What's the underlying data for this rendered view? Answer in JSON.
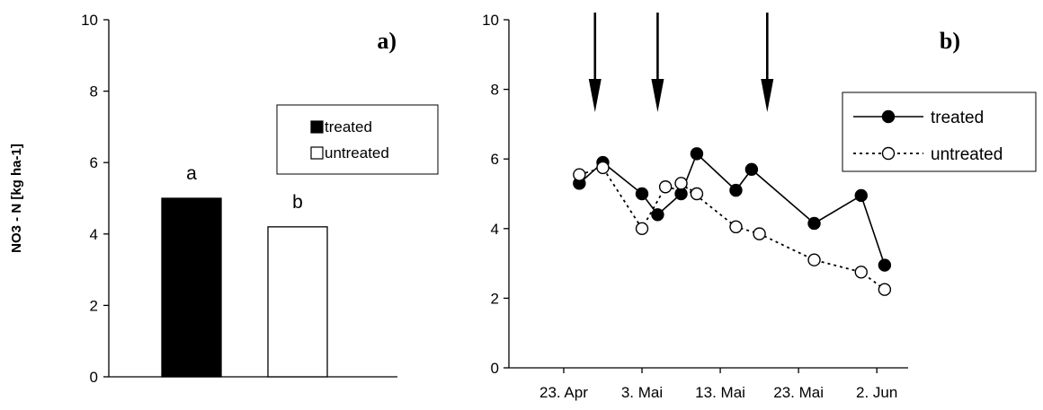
{
  "chart_data": [
    {
      "type": "bar",
      "panel_label": "a)",
      "ylabel": "NO3 - N [kg ha-1]",
      "ylim": [
        0,
        10
      ],
      "yticks": [
        0,
        2,
        4,
        6,
        8,
        10
      ],
      "categories": [
        "treated",
        "untreated"
      ],
      "values": [
        5.0,
        4.2
      ],
      "bar_labels": [
        "a",
        "b"
      ],
      "colors": [
        "#000000",
        "#ffffff"
      ],
      "legend": [
        "treated",
        "untreated"
      ],
      "legend_position": "right",
      "grid": false
    },
    {
      "type": "line",
      "panel_label": "b)",
      "ylim": [
        0,
        10
      ],
      "yticks": [
        0,
        2,
        4,
        6,
        8,
        10
      ],
      "xticks": [
        "23. Apr",
        "3. Mai",
        "13. Mai",
        "23. Mai",
        "2. Jun"
      ],
      "arrows_at": [
        "2003-04-27",
        "2003-05-05",
        "2003-05-19"
      ],
      "series": [
        {
          "name": "treated",
          "marker": "filled-circle",
          "line": "solid",
          "x": [
            "2003-04-25",
            "2003-04-28",
            "2003-05-03",
            "2003-05-05",
            "2003-05-08",
            "2003-05-10",
            "2003-05-15",
            "2003-05-17",
            "2003-05-25",
            "2003-05-31",
            "2003-06-03"
          ],
          "y": [
            5.3,
            5.9,
            5.0,
            4.4,
            5.0,
            6.15,
            5.1,
            5.7,
            4.15,
            4.95,
            2.95
          ]
        },
        {
          "name": "untreated",
          "marker": "open-circle",
          "line": "dotted",
          "x": [
            "2003-04-25",
            "2003-04-28",
            "2003-05-03",
            "2003-05-06",
            "2003-05-10",
            "2003-05-08",
            "2003-05-15",
            "2003-05-18",
            "2003-05-25",
            "2003-05-31",
            "2003-06-03"
          ],
          "y": [
            5.55,
            5.75,
            4.0,
            5.2,
            5.0,
            5.3,
            4.05,
            3.85,
            3.1,
            2.75,
            2.25
          ]
        }
      ],
      "legend": [
        "treated",
        "untreated"
      ],
      "legend_position": "top-right",
      "grid": false
    }
  ]
}
